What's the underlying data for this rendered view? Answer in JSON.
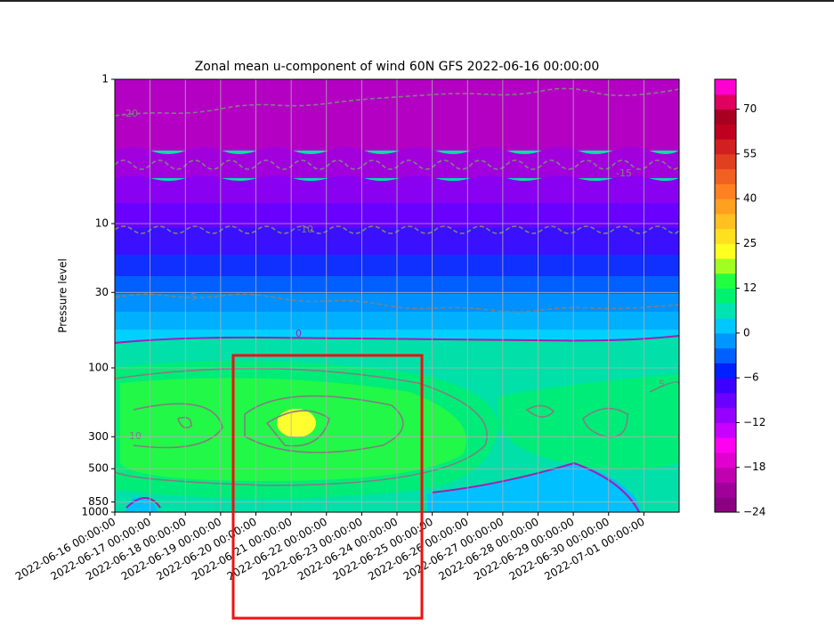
{
  "chart_data": {
    "type": "contour",
    "title": "Zonal mean u-component of wind 60N GFS 2022-06-16 00:00:00",
    "ylabel": "Pressure level",
    "categories": [
      "2022-06-16 00:00:00",
      "2022-06-17 00:00:00",
      "2022-06-18 00:00:00",
      "2022-06-19 00:00:00",
      "2022-06-20 00:00:00",
      "2022-06-21 00:00:00",
      "2022-06-22 00:00:00",
      "2022-06-23 00:00:00",
      "2022-06-24 00:00:00",
      "2022-06-25 00:00:00",
      "2022-06-26 00:00:00",
      "2022-06-27 00:00:00",
      "2022-06-28 00:00:00",
      "2022-06-29 00:00:00",
      "2022-06-30 00:00:00",
      "2022-07-01 00:00:00"
    ],
    "ylim": [
      1000,
      1
    ],
    "yscale": "log",
    "yticks": [
      1,
      10,
      30,
      100,
      300,
      500,
      850,
      1000
    ],
    "grid": true,
    "contour_labels": [
      "-20",
      "-15",
      "-10",
      "-5",
      "0",
      "10",
      "5"
    ],
    "colorbar": {
      "levels": [
        -24,
        -22,
        -20,
        -18,
        -16,
        -14,
        -12,
        -10,
        -8,
        -6,
        -4,
        -2,
        0,
        4,
        8,
        12,
        16,
        20,
        25,
        30,
        35,
        40,
        45,
        50,
        55,
        60,
        65,
        70,
        75,
        80
      ],
      "colors": [
        "#8b0080",
        "#a0009a",
        "#c000b0",
        "#e000d0",
        "#ff00f0",
        "#c800ff",
        "#9600ff",
        "#6a00ff",
        "#3c00ff",
        "#0020ff",
        "#0060ff",
        "#0096ff",
        "#00c8ff",
        "#00e4b0",
        "#00f070",
        "#20ff40",
        "#a0ff20",
        "#ffff20",
        "#ffe020",
        "#ffc020",
        "#ffa020",
        "#ff8020",
        "#f06020",
        "#e04020",
        "#d02020",
        "#c00020",
        "#a80020",
        "#e00060",
        "#ff00d0"
      ],
      "ticks": [
        {
          "value": -24,
          "label": "−24"
        },
        {
          "value": -18,
          "label": "−18"
        },
        {
          "value": -12,
          "label": "−12"
        },
        {
          "value": -6,
          "label": "−6"
        },
        0,
        12,
        25,
        40,
        55,
        70
      ]
    }
  }
}
